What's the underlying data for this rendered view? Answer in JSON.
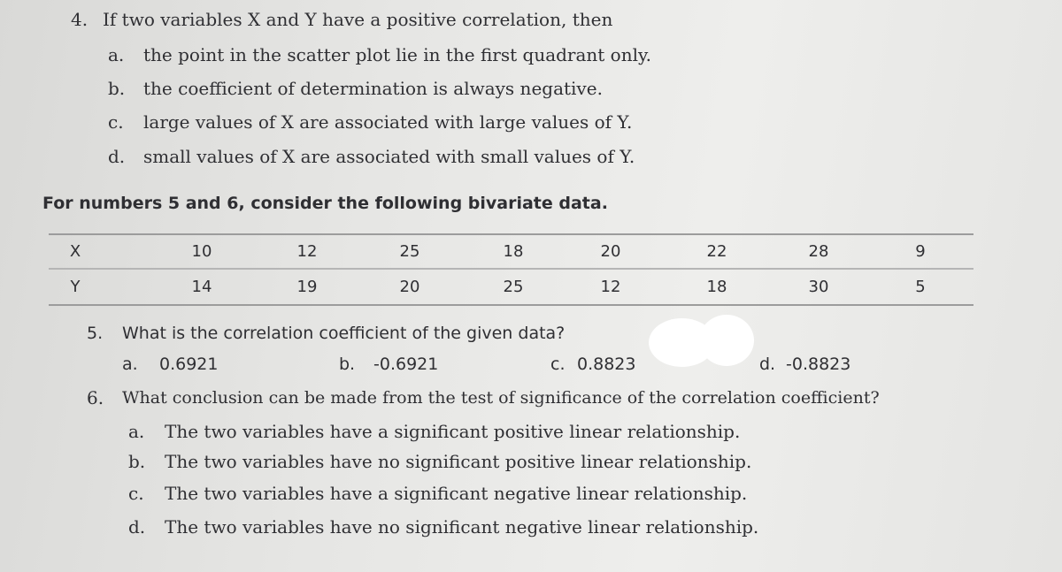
{
  "q4": {
    "number": "4.",
    "text": "If two variables X and Y have a positive correlation, then",
    "options": [
      {
        "letter": "a.",
        "text": "the point in the scatter plot lie in the first quadrant only."
      },
      {
        "letter": "b.",
        "text": "the coefficient of determination is always negative."
      },
      {
        "letter": "c.",
        "text": "large values of X are associated with large values of Y."
      },
      {
        "letter": "d.",
        "text": "small values of X are associated with small values of Y."
      }
    ]
  },
  "intro": "For numbers 5 and 6, consider the following bivariate data.",
  "table": {
    "rows": [
      [
        "X",
        "10",
        "12",
        "25",
        "18",
        "20",
        "22",
        "28",
        "9"
      ],
      [
        "Y",
        "14",
        "19",
        "20",
        "25",
        "12",
        "18",
        "30",
        "5"
      ]
    ]
  },
  "q5": {
    "number": "5.",
    "text": "What is the correlation coefficient of the given data?",
    "options": [
      {
        "letter": "a.",
        "text": "0.6921"
      },
      {
        "letter": "b.",
        "text": "-0.6921"
      },
      {
        "letter": "c.",
        "text": "0.8823"
      },
      {
        "letter": "d.",
        "text": "-0.8823"
      }
    ]
  },
  "q6": {
    "number": "6.",
    "text": "What conclusion can be made from the test of significance of the correlation coefficient?",
    "options": [
      {
        "letter": "a.",
        "text": "The two variables have a significant positive linear relationship."
      },
      {
        "letter": "b.",
        "text": "The two variables have no significant positive linear relationship."
      },
      {
        "letter": "c.",
        "text": "The two variables have a significant negative linear relationship."
      },
      {
        "letter": "d.",
        "text": "The two variables have no significant negative linear relationship."
      }
    ]
  }
}
